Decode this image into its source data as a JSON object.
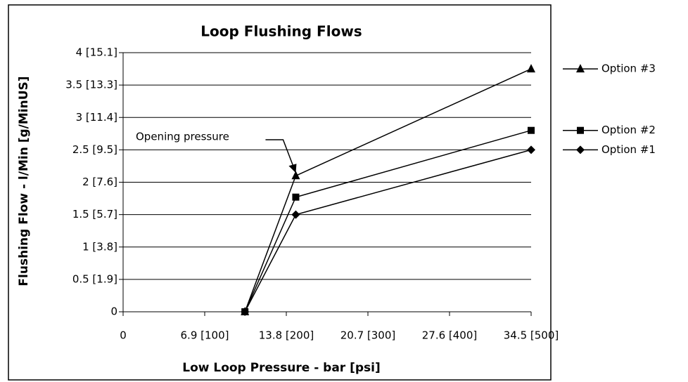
{
  "chart_data": {
    "type": "line",
    "title": "Loop Flushing Flows",
    "x_label": "Low Loop Pressure - bar [psi]",
    "y_label": "Flushing Flow - l/Min [g/MinUS]",
    "annotation": "Opening pressure",
    "xlim": [
      0,
      34.5
    ],
    "xticks": [
      0,
      {
        "value": 6.9,
        "label": "6.9 [100]"
      },
      {
        "value": 13.8,
        "label": "13.8 [200]"
      },
      {
        "value": 20.7,
        "label": "20.7 [300]"
      },
      {
        "value": 27.6,
        "label": "27.6 [400]"
      },
      {
        "value": 34.5,
        "label": "34.5 [500]"
      }
    ],
    "ylim": [
      0,
      4
    ],
    "yticks": [
      0,
      {
        "value": 0.5,
        "label": "0.5 [1.9]"
      },
      {
        "value": 1,
        "label": "1 [3.8]"
      },
      {
        "value": 1.5,
        "label": "1.5 [5.7]"
      },
      {
        "value": 2,
        "label": "2 [7.6]"
      },
      {
        "value": 2.5,
        "label": "2.5 [9.5]"
      },
      {
        "value": 3,
        "label": "3 [11.4]"
      },
      {
        "value": 3.5,
        "label": "3.5 [13.3]"
      },
      {
        "value": 4,
        "label": "4 [15.1]"
      }
    ],
    "grid": true,
    "x": [
      10.3,
      14.6,
      34.5
    ],
    "series": [
      {
        "name": "Option #3",
        "color": "#000000",
        "marker": "triangle",
        "values": [
          0,
          2.1,
          3.75
        ]
      },
      {
        "name": "Option #2",
        "color": "#000000",
        "marker": "square",
        "values": [
          0,
          1.77,
          2.8
        ]
      },
      {
        "name": "Option #1",
        "color": "#000000",
        "marker": "diamond",
        "values": [
          0,
          1.5,
          2.5
        ]
      }
    ]
  }
}
